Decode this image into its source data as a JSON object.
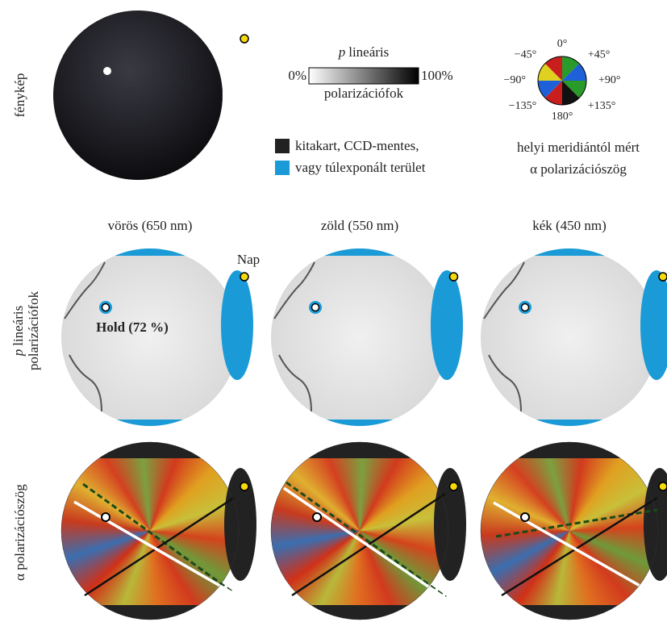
{
  "photo_label": "fénykép",
  "colorbar": {
    "symbol": "p",
    "title": "lineáris",
    "min_label": "0%",
    "max_label": "100%",
    "caption": "polarizációfok"
  },
  "legend": {
    "lines": [
      "kitakart, CCD-mentes,",
      "vagy túlexponált terület"
    ]
  },
  "compass": {
    "labels": [
      "0°",
      "+45°",
      "+90°",
      "+135°",
      "180°",
      "−135°",
      "−90°",
      "−45°"
    ],
    "caption": [
      "helyi meridiántól mért",
      "α polarizációszög"
    ]
  },
  "columns": [
    "vörös (650 nm)",
    "zöld (550 nm)",
    "kék (450 nm)"
  ],
  "annotations": {
    "sun": "Nap",
    "moon": "Hold (72 %)"
  },
  "row_labels": {
    "degree": {
      "symbol": "p",
      "lines": [
        "lineáris",
        "polarizációfok"
      ]
    },
    "angle": "α polarizációszög"
  }
}
